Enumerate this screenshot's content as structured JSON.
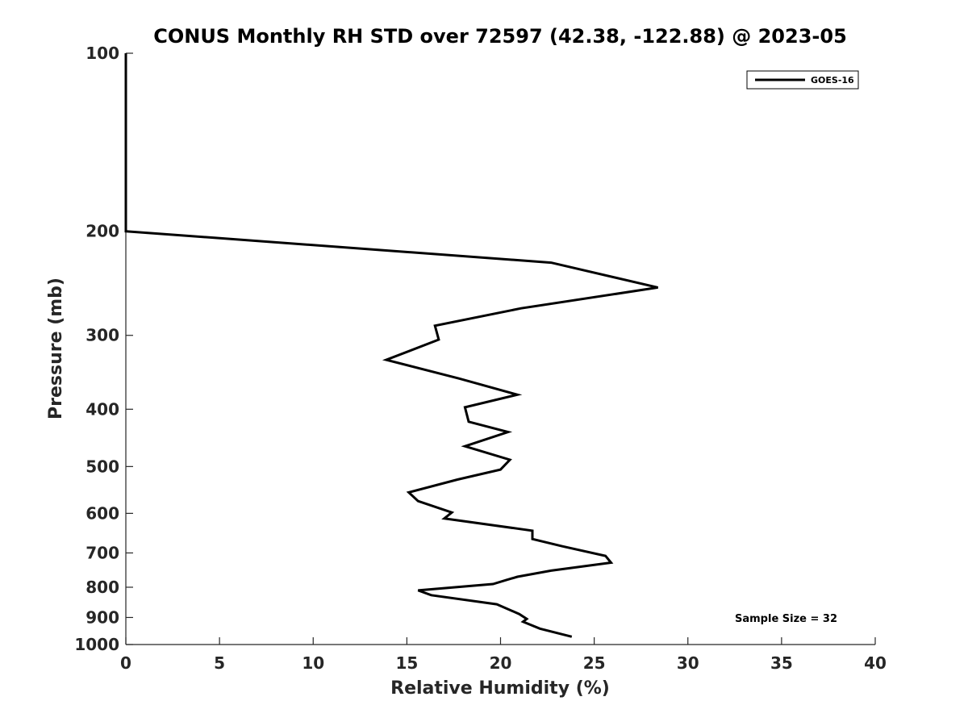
{
  "chart_data": {
    "type": "line",
    "title": "CONUS Monthly RH STD over 72597 (42.38, -122.88) @ 2023-05",
    "xlabel": "Relative Humidity (%)",
    "ylabel": "Pressure (mb)",
    "xlim": [
      0,
      40
    ],
    "ylim": [
      1000,
      100
    ],
    "yscale": "log",
    "y_inverted": true,
    "xticks": [
      0,
      5,
      10,
      15,
      20,
      25,
      30,
      35,
      40
    ],
    "yticks": [
      100,
      200,
      300,
      400,
      500,
      600,
      700,
      800,
      900,
      1000
    ],
    "grid": false,
    "legend_position": "top-right",
    "series": [
      {
        "name": "GOES-16",
        "color": "#000000",
        "x": [
          0.0,
          0.0,
          0.0,
          22.7,
          28.4,
          21.1,
          16.5,
          16.7,
          13.9,
          17.8,
          20.9,
          18.1,
          18.3,
          20.4,
          18.1,
          20.5,
          20.0,
          17.7,
          15.1,
          15.6,
          17.4,
          17.0,
          21.7,
          21.7,
          23.3,
          25.6,
          25.9,
          22.7,
          20.9,
          20.3,
          19.6,
          15.6,
          16.3,
          19.8,
          21.0,
          21.4,
          21.2,
          22.1,
          23.8
        ],
        "y": [
          100,
          150,
          200,
          226,
          249,
          270,
          289,
          305,
          330,
          355,
          378,
          397,
          420,
          437,
          462,
          487,
          506,
          526,
          553,
          572,
          598,
          612,
          642,
          663,
          682,
          708,
          727,
          750,
          768,
          778,
          790,
          810,
          825,
          855,
          888,
          905,
          915,
          940,
          970
        ]
      }
    ],
    "annotations": [
      "Sample Size = 32"
    ]
  }
}
